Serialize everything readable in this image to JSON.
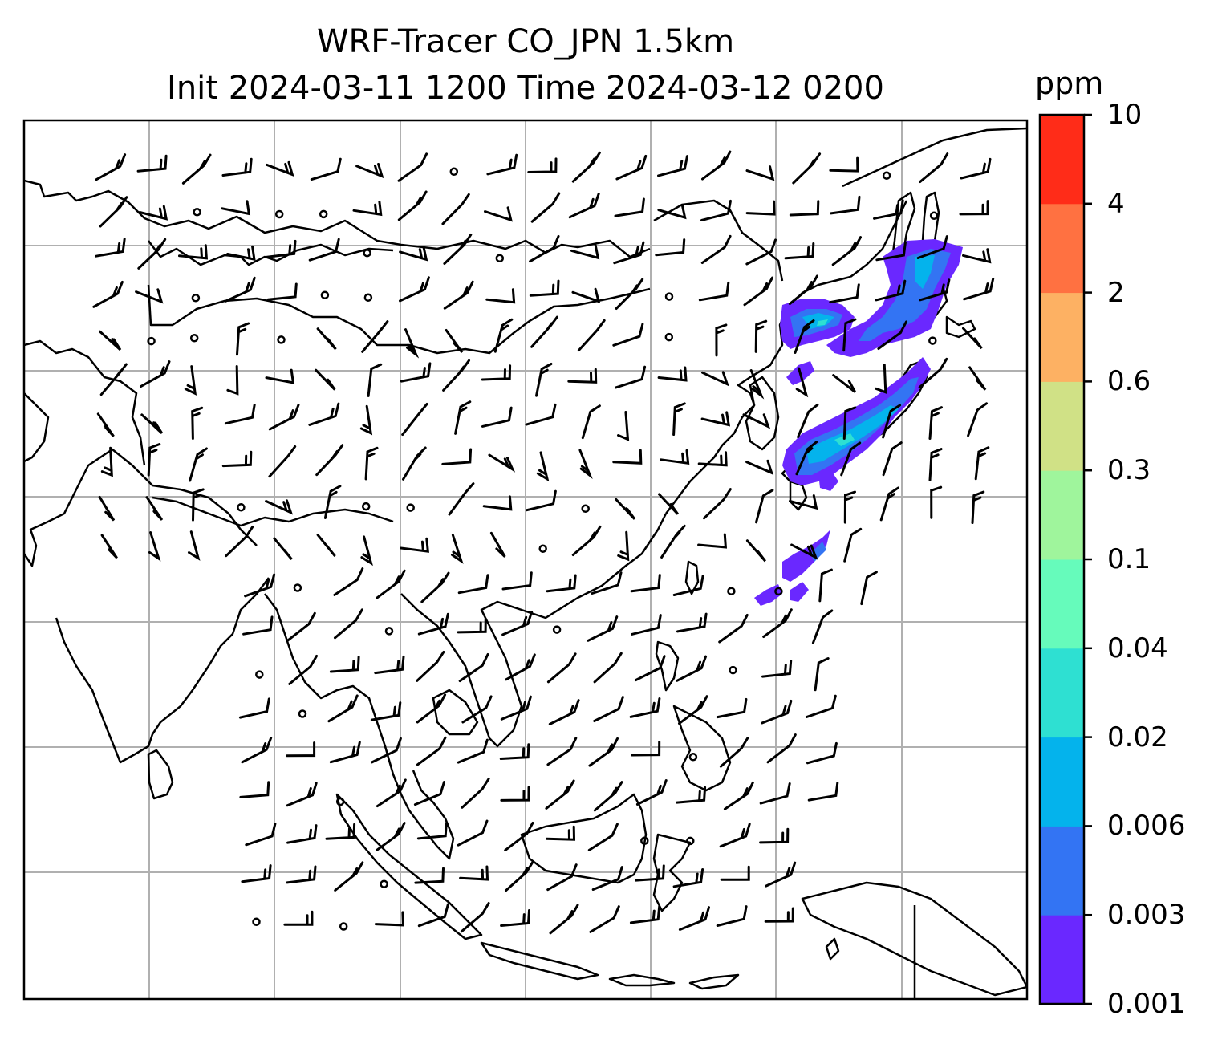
{
  "title_line1": "WRF-Tracer CO_JPN 1.5km",
  "title_line2": "Init 2024-03-11 1200 Time 2024-03-12 0200",
  "colorbar": {
    "unit": "ppm",
    "levels": [
      "0.001",
      "0.003",
      "0.006",
      "0.02",
      "0.04",
      "0.1",
      "0.3",
      "0.6",
      "2",
      "4",
      "10"
    ],
    "colors": [
      "#6a28ff",
      "#3374f3",
      "#04b3ec",
      "#2ee0d2",
      "#66fbbb",
      "#9ff59c",
      "#d0e186",
      "#fdb163",
      "#ff7141",
      "#ff2c18"
    ]
  },
  "map": {
    "features": [
      "coastlines",
      "gridlines",
      "wind-barbs",
      "tracer-plume"
    ],
    "plume_colors": [
      "#6a28ff",
      "#3374f3",
      "#04b3ec",
      "#2ee0d2"
    ]
  }
}
